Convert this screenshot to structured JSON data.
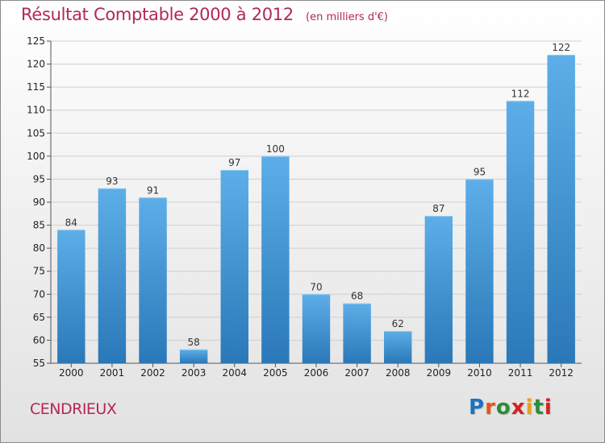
{
  "header": {
    "title": "Résultat Comptable 2000 à 2012",
    "subtitle": "(en milliers d'€)"
  },
  "commune": "CENDRIEUX",
  "logo": {
    "letters": [
      "P",
      "r",
      "o",
      "x",
      "i",
      "t",
      "i"
    ],
    "colors": [
      "#1e73be",
      "#e8541a",
      "#2e8b3a",
      "#d42020",
      "#e8a21a",
      "#2e8b3a",
      "#d42020"
    ]
  },
  "colors": {
    "bar_light": "#5daee8",
    "bar_dark": "#2a78b8",
    "title": "#b4265a"
  },
  "chart_data": {
    "type": "bar",
    "title": "Résultat Comptable 2000 à 2012",
    "subtitle": "(en milliers d'€)",
    "xlabel": "",
    "ylabel": "",
    "categories": [
      "2000",
      "2001",
      "2002",
      "2003",
      "2004",
      "2005",
      "2006",
      "2007",
      "2008",
      "2009",
      "2010",
      "2011",
      "2012"
    ],
    "values": [
      84,
      93,
      91,
      58,
      97,
      100,
      70,
      68,
      62,
      87,
      95,
      112,
      122
    ],
    "ylim": [
      55,
      125
    ],
    "yticks": [
      55,
      60,
      65,
      70,
      75,
      80,
      85,
      90,
      95,
      100,
      105,
      110,
      115,
      120,
      125
    ],
    "grid": true
  }
}
